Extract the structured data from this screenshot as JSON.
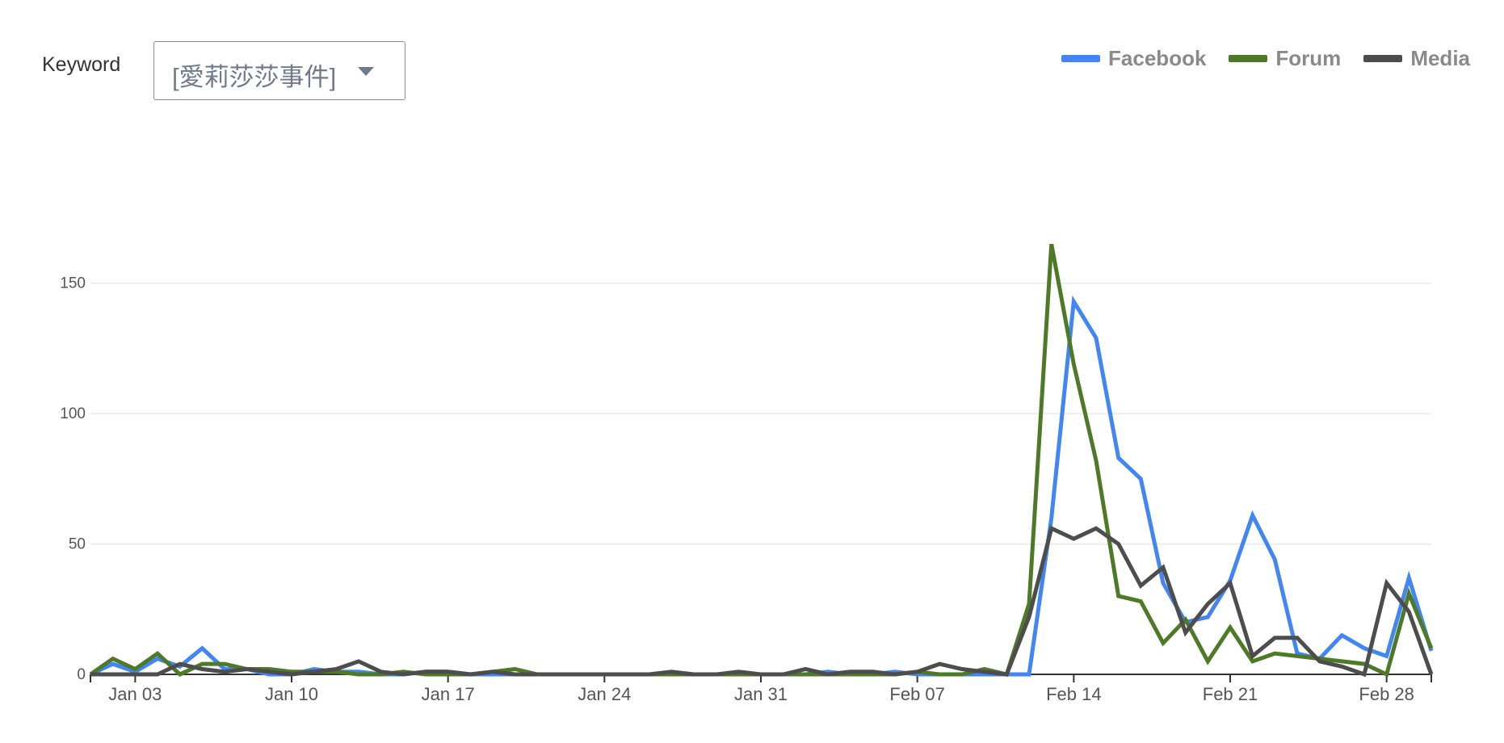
{
  "filter": {
    "label": "Keyword",
    "selected": "[愛莉莎莎事件]"
  },
  "colors": {
    "facebook": "#4285f4",
    "forum": "#4e7a27",
    "media": "#4d4d4d",
    "grid": "#e9e9e9",
    "axis": "#333333",
    "tick_text": "#555555"
  },
  "icons": {
    "dropdown": "caret-down-icon"
  },
  "chart_data": {
    "type": "line",
    "x": [
      "Jan 01",
      "Jan 02",
      "Jan 03",
      "Jan 04",
      "Jan 05",
      "Jan 06",
      "Jan 07",
      "Jan 08",
      "Jan 09",
      "Jan 10",
      "Jan 11",
      "Jan 12",
      "Jan 13",
      "Jan 14",
      "Jan 15",
      "Jan 16",
      "Jan 17",
      "Jan 18",
      "Jan 19",
      "Jan 20",
      "Jan 21",
      "Jan 22",
      "Jan 23",
      "Jan 24",
      "Jan 25",
      "Jan 26",
      "Jan 27",
      "Jan 28",
      "Jan 29",
      "Jan 30",
      "Jan 31",
      "Feb 01",
      "Feb 02",
      "Feb 03",
      "Feb 04",
      "Feb 05",
      "Feb 06",
      "Feb 07",
      "Feb 08",
      "Feb 09",
      "Feb 10",
      "Feb 11",
      "Feb 12",
      "Feb 13",
      "Feb 14",
      "Feb 15",
      "Feb 16",
      "Feb 17",
      "Feb 18",
      "Feb 19",
      "Feb 20",
      "Feb 21",
      "Feb 22",
      "Feb 23",
      "Feb 24",
      "Feb 25",
      "Feb 26",
      "Feb 27",
      "Feb 28",
      "Feb 29",
      "Mar 01"
    ],
    "x_ticks": [
      "Jan 03",
      "Jan 10",
      "Jan 17",
      "Jan 24",
      "Jan 31",
      "Feb 07",
      "Feb 14",
      "Feb 21",
      "Feb 28"
    ],
    "y_ticks": [
      0,
      50,
      100,
      150
    ],
    "ylim": [
      0,
      175
    ],
    "grid": true,
    "legend_position": "top-right",
    "series": [
      {
        "name": "Facebook",
        "color": "#4285f4",
        "values": [
          0,
          4,
          1,
          6,
          3,
          10,
          2,
          2,
          0,
          0,
          2,
          1,
          1,
          0,
          0,
          1,
          1,
          0,
          0,
          0,
          0,
          0,
          0,
          0,
          0,
          0,
          0,
          0,
          0,
          0,
          0,
          0,
          0,
          1,
          0,
          0,
          1,
          0,
          0,
          0,
          0,
          0,
          0,
          60,
          143,
          129,
          83,
          75,
          35,
          20,
          22,
          36,
          61,
          44,
          8,
          6,
          15,
          10,
          7,
          37,
          9
        ]
      },
      {
        "name": "Forum",
        "color": "#4e7a27",
        "values": [
          0,
          6,
          2,
          8,
          0,
          4,
          4,
          2,
          2,
          1,
          1,
          1,
          0,
          0,
          1,
          0,
          0,
          0,
          1,
          2,
          0,
          0,
          0,
          0,
          0,
          0,
          0,
          0,
          0,
          0,
          0,
          0,
          0,
          0,
          0,
          0,
          0,
          1,
          0,
          0,
          2,
          0,
          27,
          165,
          119,
          82,
          30,
          28,
          12,
          21,
          5,
          18,
          5,
          8,
          7,
          6,
          5,
          4,
          0,
          31,
          10
        ]
      },
      {
        "name": "Media",
        "color": "#4d4d4d",
        "values": [
          0,
          0,
          0,
          0,
          4,
          2,
          1,
          2,
          1,
          0,
          1,
          2,
          5,
          1,
          0,
          1,
          1,
          0,
          1,
          0,
          0,
          0,
          0,
          0,
          0,
          0,
          1,
          0,
          0,
          1,
          0,
          0,
          2,
          0,
          1,
          1,
          0,
          1,
          4,
          2,
          1,
          0,
          22,
          56,
          52,
          56,
          50,
          34,
          41,
          16,
          27,
          35,
          7,
          14,
          14,
          5,
          3,
          0,
          35,
          24,
          0
        ]
      }
    ]
  }
}
